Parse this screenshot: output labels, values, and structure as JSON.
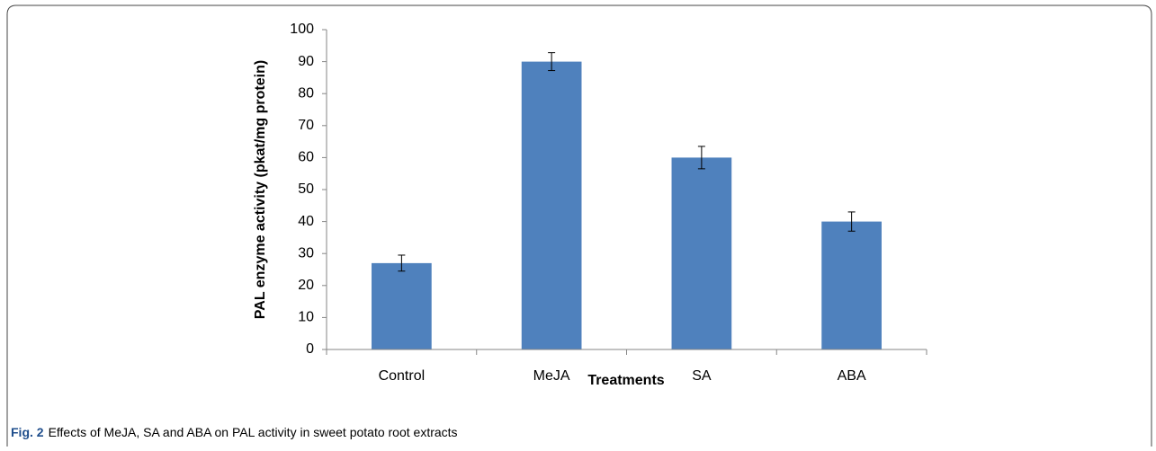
{
  "chart_data": {
    "type": "bar",
    "ylabel": "PAL enzyme activity (pkat/mg protein)",
    "xlabel": "Treatments",
    "categories": [
      "Control",
      "MeJA",
      "SA",
      "ABA"
    ],
    "values": [
      27,
      90,
      60,
      40
    ],
    "errors": [
      2.5,
      2.8,
      3.5,
      3
    ],
    "color": "#4f81bd",
    "ylim": [
      0,
      100
    ],
    "yticks": [
      0,
      10,
      20,
      30,
      40,
      50,
      60,
      70,
      80,
      90,
      100
    ],
    "grid": false
  },
  "caption": {
    "label": "Fig. 2",
    "text": "Effects of MeJA, SA and ABA on PAL activity in sweet potato root extracts"
  }
}
